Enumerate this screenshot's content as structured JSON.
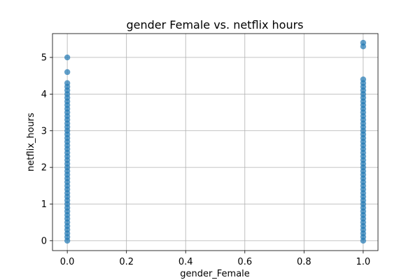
{
  "chart_data": {
    "type": "scatter",
    "title": "gender Female vs. netflix hours",
    "xlabel": "gender_Female",
    "ylabel": "netflix_hours",
    "xlim": [
      -0.05,
      1.05
    ],
    "ylim": [
      -0.27,
      5.65
    ],
    "x_ticks": [
      0.0,
      0.2,
      0.4,
      0.6,
      0.8,
      1.0
    ],
    "x_tick_labels": [
      "0.0",
      "0.2",
      "0.4",
      "0.6",
      "0.8",
      "1.0"
    ],
    "y_ticks": [
      0,
      1,
      2,
      3,
      4,
      5
    ],
    "y_tick_labels": [
      "0",
      "1",
      "2",
      "3",
      "4",
      "5"
    ],
    "grid": true,
    "marker_color": "#1f77b4",
    "marker_alpha": 0.7,
    "series": [
      {
        "points": [
          {
            "x": 0,
            "y": 5.0
          },
          {
            "x": 0,
            "y": 4.6
          },
          {
            "x": 0,
            "y": 4.3
          },
          {
            "x": 0,
            "y": 4.2
          },
          {
            "x": 0,
            "y": 4.1
          },
          {
            "x": 0,
            "y": 4.0
          },
          {
            "x": 0,
            "y": 3.9
          },
          {
            "x": 0,
            "y": 3.8
          },
          {
            "x": 0,
            "y": 3.7
          },
          {
            "x": 0,
            "y": 3.6
          },
          {
            "x": 0,
            "y": 3.5
          },
          {
            "x": 0,
            "y": 3.4
          },
          {
            "x": 0,
            "y": 3.3
          },
          {
            "x": 0,
            "y": 3.2
          },
          {
            "x": 0,
            "y": 3.1
          },
          {
            "x": 0,
            "y": 3.0
          },
          {
            "x": 0,
            "y": 2.9
          },
          {
            "x": 0,
            "y": 2.8
          },
          {
            "x": 0,
            "y": 2.7
          },
          {
            "x": 0,
            "y": 2.6
          },
          {
            "x": 0,
            "y": 2.5
          },
          {
            "x": 0,
            "y": 2.4
          },
          {
            "x": 0,
            "y": 2.3
          },
          {
            "x": 0,
            "y": 2.2
          },
          {
            "x": 0,
            "y": 2.1
          },
          {
            "x": 0,
            "y": 2.0
          },
          {
            "x": 0,
            "y": 1.9
          },
          {
            "x": 0,
            "y": 1.8
          },
          {
            "x": 0,
            "y": 1.7
          },
          {
            "x": 0,
            "y": 1.6
          },
          {
            "x": 0,
            "y": 1.5
          },
          {
            "x": 0,
            "y": 1.4
          },
          {
            "x": 0,
            "y": 1.3
          },
          {
            "x": 0,
            "y": 1.2
          },
          {
            "x": 0,
            "y": 1.1
          },
          {
            "x": 0,
            "y": 1.0
          },
          {
            "x": 0,
            "y": 0.9
          },
          {
            "x": 0,
            "y": 0.8
          },
          {
            "x": 0,
            "y": 0.7
          },
          {
            "x": 0,
            "y": 0.6
          },
          {
            "x": 0,
            "y": 0.5
          },
          {
            "x": 0,
            "y": 0.4
          },
          {
            "x": 0,
            "y": 0.3
          },
          {
            "x": 0,
            "y": 0.2
          },
          {
            "x": 0,
            "y": 0.1
          },
          {
            "x": 0,
            "y": 0.0
          },
          {
            "x": 1,
            "y": 5.4
          },
          {
            "x": 1,
            "y": 5.3
          },
          {
            "x": 1,
            "y": 4.4
          },
          {
            "x": 1,
            "y": 4.3
          },
          {
            "x": 1,
            "y": 4.2
          },
          {
            "x": 1,
            "y": 4.1
          },
          {
            "x": 1,
            "y": 4.0
          },
          {
            "x": 1,
            "y": 3.9
          },
          {
            "x": 1,
            "y": 3.8
          },
          {
            "x": 1,
            "y": 3.7
          },
          {
            "x": 1,
            "y": 3.6
          },
          {
            "x": 1,
            "y": 3.5
          },
          {
            "x": 1,
            "y": 3.4
          },
          {
            "x": 1,
            "y": 3.3
          },
          {
            "x": 1,
            "y": 3.2
          },
          {
            "x": 1,
            "y": 3.1
          },
          {
            "x": 1,
            "y": 3.0
          },
          {
            "x": 1,
            "y": 2.9
          },
          {
            "x": 1,
            "y": 2.8
          },
          {
            "x": 1,
            "y": 2.7
          },
          {
            "x": 1,
            "y": 2.6
          },
          {
            "x": 1,
            "y": 2.5
          },
          {
            "x": 1,
            "y": 2.4
          },
          {
            "x": 1,
            "y": 2.3
          },
          {
            "x": 1,
            "y": 2.2
          },
          {
            "x": 1,
            "y": 2.1
          },
          {
            "x": 1,
            "y": 2.0
          },
          {
            "x": 1,
            "y": 1.9
          },
          {
            "x": 1,
            "y": 1.8
          },
          {
            "x": 1,
            "y": 1.7
          },
          {
            "x": 1,
            "y": 1.6
          },
          {
            "x": 1,
            "y": 1.5
          },
          {
            "x": 1,
            "y": 1.4
          },
          {
            "x": 1,
            "y": 1.3
          },
          {
            "x": 1,
            "y": 1.2
          },
          {
            "x": 1,
            "y": 1.1
          },
          {
            "x": 1,
            "y": 1.0
          },
          {
            "x": 1,
            "y": 0.9
          },
          {
            "x": 1,
            "y": 0.8
          },
          {
            "x": 1,
            "y": 0.7
          },
          {
            "x": 1,
            "y": 0.6
          },
          {
            "x": 1,
            "y": 0.5
          },
          {
            "x": 1,
            "y": 0.4
          },
          {
            "x": 1,
            "y": 0.3
          },
          {
            "x": 1,
            "y": 0.2
          },
          {
            "x": 1,
            "y": 0.1
          },
          {
            "x": 1,
            "y": 0.0
          }
        ]
      }
    ]
  }
}
